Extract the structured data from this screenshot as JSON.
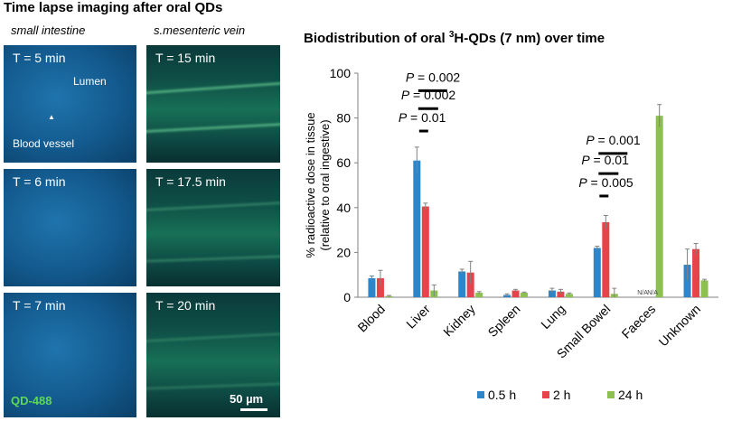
{
  "figure_title": "Time lapse imaging after oral QDs",
  "left_column": {
    "title": "small intestine",
    "panels": [
      {
        "time": "T = 5 min",
        "labels": [
          "Lumen",
          "Blood vessel"
        ]
      },
      {
        "time": "T = 6 min"
      },
      {
        "time": "T = 7 min",
        "overlay": "QD-488"
      }
    ]
  },
  "right_column": {
    "title": "s.mesenteric vein",
    "panels": [
      {
        "time": "T = 15 min"
      },
      {
        "time": "T = 17.5 min"
      },
      {
        "time": "T = 20 min",
        "scale_bar": "50 µm"
      }
    ]
  },
  "colors": {
    "s05": "#2e86c8",
    "s2": "#e8424b",
    "s24": "#8cc152"
  },
  "chart_data": {
    "type": "bar",
    "title": "Biodistribution of oral ³H-QDs (7 nm) over time",
    "title_parts": {
      "pre": "Biodistribution of oral ",
      "sup": "3",
      "post": "H-QDs (7 nm) over time"
    },
    "ylabel_line1": "% radioactive dose in tissue",
    "ylabel_line2": "(relative to oral ingestive)",
    "ylim": [
      0,
      100
    ],
    "yticks": [
      0,
      20,
      40,
      60,
      80,
      100
    ],
    "categories": [
      "Blood",
      "Liver",
      "Kidney",
      "Spleen",
      "Lung",
      "Small Bowel",
      "Faeces",
      "Unknown"
    ],
    "series": [
      {
        "name": "0.5 h",
        "color": "#2e86c8",
        "values": [
          8.5,
          61,
          11.5,
          1,
          3,
          22,
          null,
          14.5
        ],
        "errors": [
          1,
          6,
          1,
          0.5,
          1,
          0.8,
          null,
          7
        ]
      },
      {
        "name": "2 h",
        "color": "#e8424b",
        "values": [
          8.5,
          40.5,
          11,
          3,
          2.5,
          33.5,
          null,
          21.5
        ],
        "errors": [
          3.5,
          1.5,
          5,
          0.5,
          1,
          3,
          null,
          2.5
        ]
      },
      {
        "name": "24 h",
        "color": "#8cc152",
        "values": [
          0.5,
          3,
          2,
          2,
          1.5,
          1.5,
          81,
          7.5
        ],
        "errors": [
          0.3,
          2.5,
          0.5,
          0.3,
          0.4,
          2.5,
          5,
          0.5
        ]
      }
    ],
    "na_labels": [
      "N/A",
      "N/A"
    ],
    "significance": [
      {
        "text": "P = 0.002",
        "category": 1,
        "y": 95
      },
      {
        "text": "P = 0.002",
        "category": 1,
        "y": 87
      },
      {
        "text": "P = 0.01",
        "category": 1,
        "y": 77
      },
      {
        "text": "P = 0.001",
        "category": 5,
        "y": 67
      },
      {
        "text": "P = 0.01",
        "category": 5,
        "y": 58
      },
      {
        "text": "P = 0.005",
        "category": 5,
        "y": 48
      }
    ],
    "legend": [
      "0.5 h",
      "2 h",
      "24 h"
    ],
    "legend_position": "bottom"
  }
}
